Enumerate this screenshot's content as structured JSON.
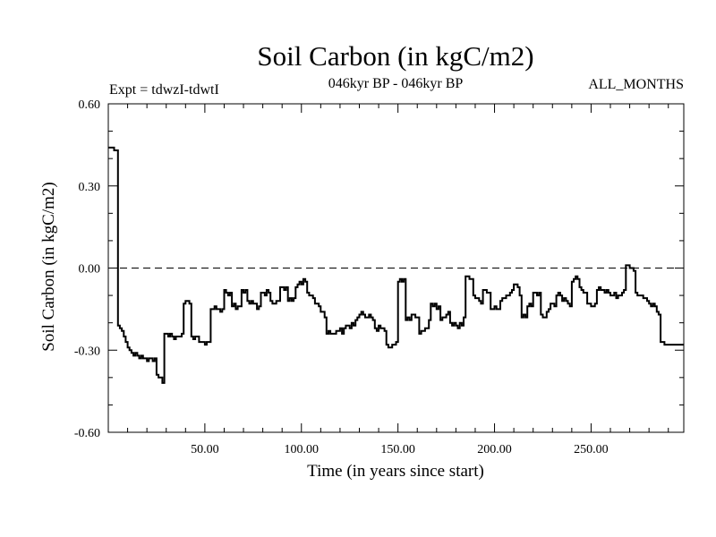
{
  "chart_data": {
    "type": "line",
    "title": "Soil Carbon (in kgC/m2)",
    "subtitle": "046kyr BP - 046kyr BP",
    "left_label": "Expt = tdwzI-tdwtI",
    "right_label": "ALL_MONTHS",
    "xlabel": "Time (in years since start)",
    "ylabel": "Soil Carbon (in kgC/m2)",
    "xlim": [
      0,
      298
    ],
    "ylim": [
      -0.6,
      0.6
    ],
    "x_ticks": [
      50,
      100,
      150,
      200,
      250
    ],
    "x_tick_labels": [
      "50.00",
      "100.00",
      "150.00",
      "200.00",
      "250.00"
    ],
    "y_ticks": [
      -0.6,
      -0.3,
      0.0,
      0.3,
      0.6
    ],
    "y_tick_labels": [
      "-0.60",
      "-0.30",
      "0.00",
      "0.30",
      "0.60"
    ],
    "reference_line": 0.0,
    "grid": false,
    "series": [
      {
        "color": "#000000",
        "points": [
          [
            0,
            0.44
          ],
          [
            1,
            0.44
          ],
          [
            2,
            0.44
          ],
          [
            3,
            0.43
          ],
          [
            4,
            0.43
          ],
          [
            5,
            -0.21
          ],
          [
            6,
            -0.22
          ],
          [
            7,
            -0.23
          ],
          [
            8,
            -0.25
          ],
          [
            9,
            -0.27
          ],
          [
            10,
            -0.29
          ],
          [
            11,
            -0.3
          ],
          [
            12,
            -0.31
          ],
          [
            13,
            -0.32
          ],
          [
            14,
            -0.31
          ],
          [
            15,
            -0.32
          ],
          [
            16,
            -0.33
          ],
          [
            17,
            -0.32
          ],
          [
            18,
            -0.33
          ],
          [
            19,
            -0.33
          ],
          [
            20,
            -0.34
          ],
          [
            21,
            -0.33
          ],
          [
            22,
            -0.33
          ],
          [
            23,
            -0.34
          ],
          [
            24,
            -0.33
          ],
          [
            25,
            -0.39
          ],
          [
            26,
            -0.4
          ],
          [
            27,
            -0.4
          ],
          [
            28,
            -0.42
          ],
          [
            29,
            -0.24
          ],
          [
            30,
            -0.24
          ],
          [
            31,
            -0.25
          ],
          [
            32,
            -0.24
          ],
          [
            33,
            -0.25
          ],
          [
            34,
            -0.26
          ],
          [
            35,
            -0.25
          ],
          [
            36,
            -0.25
          ],
          [
            37,
            -0.25
          ],
          [
            38,
            -0.24
          ],
          [
            39,
            -0.13
          ],
          [
            40,
            -0.12
          ],
          [
            41,
            -0.12
          ],
          [
            42,
            -0.13
          ],
          [
            43,
            -0.25
          ],
          [
            44,
            -0.26
          ],
          [
            45,
            -0.25
          ],
          [
            46,
            -0.25
          ],
          [
            47,
            -0.27
          ],
          [
            48,
            -0.27
          ],
          [
            49,
            -0.27
          ],
          [
            50,
            -0.28
          ],
          [
            51,
            -0.27
          ],
          [
            52,
            -0.27
          ],
          [
            53,
            -0.15
          ],
          [
            54,
            -0.15
          ],
          [
            55,
            -0.14
          ],
          [
            56,
            -0.15
          ],
          [
            57,
            -0.15
          ],
          [
            58,
            -0.16
          ],
          [
            59,
            -0.15
          ],
          [
            60,
            -0.08
          ],
          [
            61,
            -0.09
          ],
          [
            62,
            -0.1
          ],
          [
            63,
            -0.09
          ],
          [
            64,
            -0.14
          ],
          [
            65,
            -0.13
          ],
          [
            66,
            -0.15
          ],
          [
            67,
            -0.14
          ],
          [
            68,
            -0.14
          ],
          [
            69,
            -0.08
          ],
          [
            70,
            -0.09
          ],
          [
            71,
            -0.08
          ],
          [
            72,
            -0.12
          ],
          [
            73,
            -0.13
          ],
          [
            74,
            -0.12
          ],
          [
            75,
            -0.13
          ],
          [
            76,
            -0.13
          ],
          [
            77,
            -0.15
          ],
          [
            78,
            -0.14
          ],
          [
            79,
            -0.09
          ],
          [
            80,
            -0.09
          ],
          [
            81,
            -0.1
          ],
          [
            82,
            -0.08
          ],
          [
            83,
            -0.09
          ],
          [
            84,
            -0.12
          ],
          [
            85,
            -0.13
          ],
          [
            86,
            -0.13
          ],
          [
            87,
            -0.12
          ],
          [
            88,
            -0.12
          ],
          [
            89,
            -0.07
          ],
          [
            90,
            -0.07
          ],
          [
            91,
            -0.08
          ],
          [
            92,
            -0.07
          ],
          [
            93,
            -0.12
          ],
          [
            94,
            -0.11
          ],
          [
            95,
            -0.12
          ],
          [
            96,
            -0.11
          ],
          [
            97,
            -0.07
          ],
          [
            98,
            -0.06
          ],
          [
            99,
            -0.05
          ],
          [
            100,
            -0.06
          ],
          [
            101,
            -0.04
          ],
          [
            102,
            -0.05
          ],
          [
            103,
            -0.09
          ],
          [
            104,
            -0.1
          ],
          [
            105,
            -0.1
          ],
          [
            106,
            -0.11
          ],
          [
            107,
            -0.13
          ],
          [
            108,
            -0.13
          ],
          [
            109,
            -0.14
          ],
          [
            110,
            -0.16
          ],
          [
            111,
            -0.16
          ],
          [
            112,
            -0.18
          ],
          [
            113,
            -0.24
          ],
          [
            114,
            -0.23
          ],
          [
            115,
            -0.24
          ],
          [
            116,
            -0.24
          ],
          [
            117,
            -0.24
          ],
          [
            118,
            -0.23
          ],
          [
            119,
            -0.23
          ],
          [
            120,
            -0.22
          ],
          [
            121,
            -0.24
          ],
          [
            122,
            -0.22
          ],
          [
            123,
            -0.21
          ],
          [
            124,
            -0.21
          ],
          [
            125,
            -0.22
          ],
          [
            126,
            -0.2
          ],
          [
            127,
            -0.21
          ],
          [
            128,
            -0.19
          ],
          [
            129,
            -0.18
          ],
          [
            130,
            -0.17
          ],
          [
            131,
            -0.16
          ],
          [
            132,
            -0.17
          ],
          [
            133,
            -0.18
          ],
          [
            134,
            -0.18
          ],
          [
            135,
            -0.17
          ],
          [
            136,
            -0.18
          ],
          [
            137,
            -0.19
          ],
          [
            138,
            -0.22
          ],
          [
            139,
            -0.23
          ],
          [
            140,
            -0.21
          ],
          [
            141,
            -0.22
          ],
          [
            142,
            -0.22
          ],
          [
            143,
            -0.23
          ],
          [
            144,
            -0.28
          ],
          [
            145,
            -0.29
          ],
          [
            146,
            -0.29
          ],
          [
            147,
            -0.28
          ],
          [
            148,
            -0.28
          ],
          [
            149,
            -0.27
          ],
          [
            150,
            -0.05
          ],
          [
            151,
            -0.04
          ],
          [
            152,
            -0.05
          ],
          [
            153,
            -0.04
          ],
          [
            154,
            -0.19
          ],
          [
            155,
            -0.18
          ],
          [
            156,
            -0.19
          ],
          [
            157,
            -0.17
          ],
          [
            158,
            -0.17
          ],
          [
            159,
            -0.18
          ],
          [
            160,
            -0.18
          ],
          [
            161,
            -0.24
          ],
          [
            162,
            -0.23
          ],
          [
            163,
            -0.23
          ],
          [
            164,
            -0.22
          ],
          [
            165,
            -0.22
          ],
          [
            166,
            -0.19
          ],
          [
            167,
            -0.13
          ],
          [
            168,
            -0.14
          ],
          [
            169,
            -0.13
          ],
          [
            170,
            -0.15
          ],
          [
            171,
            -0.14
          ],
          [
            172,
            -0.19
          ],
          [
            173,
            -0.18
          ],
          [
            174,
            -0.18
          ],
          [
            175,
            -0.17
          ],
          [
            176,
            -0.16
          ],
          [
            177,
            -0.2
          ],
          [
            178,
            -0.21
          ],
          [
            179,
            -0.2
          ],
          [
            180,
            -0.21
          ],
          [
            181,
            -0.22
          ],
          [
            182,
            -0.2
          ],
          [
            183,
            -0.21
          ],
          [
            184,
            -0.18
          ],
          [
            185,
            -0.03
          ],
          [
            186,
            -0.03
          ],
          [
            187,
            -0.04
          ],
          [
            188,
            -0.04
          ],
          [
            189,
            -0.1
          ],
          [
            190,
            -0.11
          ],
          [
            191,
            -0.11
          ],
          [
            192,
            -0.12
          ],
          [
            193,
            -0.13
          ],
          [
            194,
            -0.08
          ],
          [
            195,
            -0.08
          ],
          [
            196,
            -0.09
          ],
          [
            197,
            -0.09
          ],
          [
            198,
            -0.15
          ],
          [
            199,
            -0.15
          ],
          [
            200,
            -0.14
          ],
          [
            201,
            -0.15
          ],
          [
            202,
            -0.15
          ],
          [
            203,
            -0.12
          ],
          [
            204,
            -0.11
          ],
          [
            205,
            -0.11
          ],
          [
            206,
            -0.1
          ],
          [
            207,
            -0.1
          ],
          [
            208,
            -0.09
          ],
          [
            209,
            -0.08
          ],
          [
            210,
            -0.06
          ],
          [
            211,
            -0.06
          ],
          [
            212,
            -0.07
          ],
          [
            213,
            -0.1
          ],
          [
            214,
            -0.18
          ],
          [
            215,
            -0.17
          ],
          [
            216,
            -0.18
          ],
          [
            217,
            -0.14
          ],
          [
            218,
            -0.13
          ],
          [
            219,
            -0.14
          ],
          [
            220,
            -0.09
          ],
          [
            221,
            -0.09
          ],
          [
            222,
            -0.1
          ],
          [
            223,
            -0.09
          ],
          [
            224,
            -0.17
          ],
          [
            225,
            -0.18
          ],
          [
            226,
            -0.18
          ],
          [
            227,
            -0.16
          ],
          [
            228,
            -0.15
          ],
          [
            229,
            -0.13
          ],
          [
            230,
            -0.13
          ],
          [
            231,
            -0.14
          ],
          [
            232,
            -0.1
          ],
          [
            233,
            -0.09
          ],
          [
            234,
            -0.1
          ],
          [
            235,
            -0.12
          ],
          [
            236,
            -0.11
          ],
          [
            237,
            -0.12
          ],
          [
            238,
            -0.13
          ],
          [
            239,
            -0.14
          ],
          [
            240,
            -0.05
          ],
          [
            241,
            -0.04
          ],
          [
            242,
            -0.03
          ],
          [
            243,
            -0.04
          ],
          [
            244,
            -0.07
          ],
          [
            245,
            -0.08
          ],
          [
            246,
            -0.09
          ],
          [
            247,
            -0.09
          ],
          [
            248,
            -0.13
          ],
          [
            249,
            -0.13
          ],
          [
            250,
            -0.14
          ],
          [
            251,
            -0.14
          ],
          [
            252,
            -0.13
          ],
          [
            253,
            -0.08
          ],
          [
            254,
            -0.07
          ],
          [
            255,
            -0.08
          ],
          [
            256,
            -0.08
          ],
          [
            257,
            -0.09
          ],
          [
            258,
            -0.08
          ],
          [
            259,
            -0.09
          ],
          [
            260,
            -0.1
          ],
          [
            261,
            -0.1
          ],
          [
            262,
            -0.09
          ],
          [
            263,
            -0.11
          ],
          [
            264,
            -0.1
          ],
          [
            265,
            -0.1
          ],
          [
            266,
            -0.09
          ],
          [
            267,
            -0.08
          ],
          [
            268,
            0.01
          ],
          [
            269,
            0.01
          ],
          [
            270,
            0.0
          ],
          [
            271,
            0.0
          ],
          [
            272,
            -0.01
          ],
          [
            273,
            -0.09
          ],
          [
            274,
            -0.1
          ],
          [
            275,
            -0.1
          ],
          [
            276,
            -0.1
          ],
          [
            277,
            -0.11
          ],
          [
            278,
            -0.11
          ],
          [
            279,
            -0.12
          ],
          [
            280,
            -0.13
          ],
          [
            281,
            -0.14
          ],
          [
            282,
            -0.13
          ],
          [
            283,
            -0.14
          ],
          [
            284,
            -0.16
          ],
          [
            285,
            -0.17
          ],
          [
            286,
            -0.27
          ],
          [
            287,
            -0.27
          ],
          [
            288,
            -0.28
          ],
          [
            289,
            -0.28
          ]
        ]
      }
    ]
  }
}
